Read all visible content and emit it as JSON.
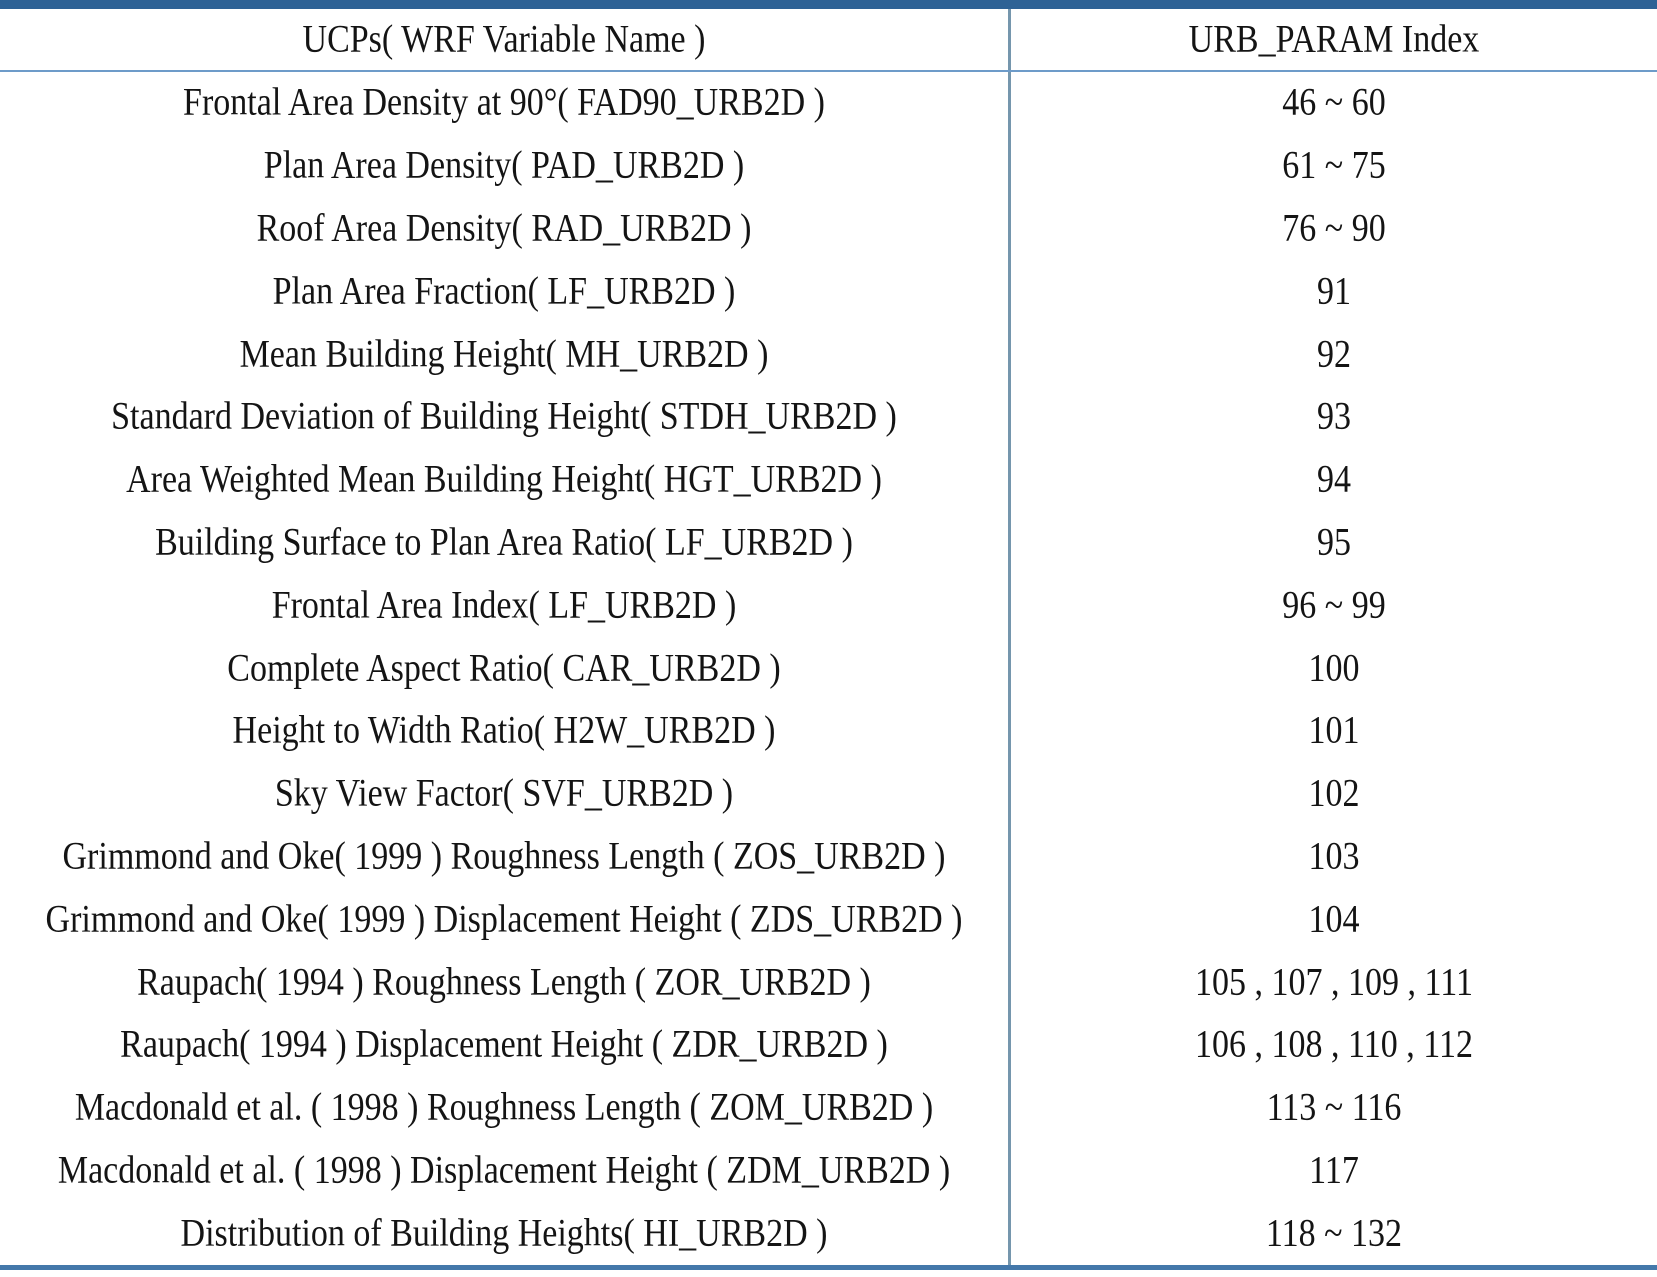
{
  "table": {
    "headers": [
      {
        "label": "UCPs( WRF Variable Name )"
      },
      {
        "label": "URB_PARAM Index"
      }
    ]
  },
  "rows": [
    {
      "ucp": "Frontal Area Density at 90°( FAD90_URB2D )",
      "index": "46 ~ 60"
    },
    {
      "ucp": "Plan Area Density( PAD_URB2D )",
      "index": "61 ~ 75"
    },
    {
      "ucp": "Roof Area Density( RAD_URB2D )",
      "index": "76 ~ 90"
    },
    {
      "ucp": "Plan Area Fraction( LF_URB2D )",
      "index": "91"
    },
    {
      "ucp": "Mean Building Height( MH_URB2D )",
      "index": "92"
    },
    {
      "ucp": "Standard Deviation of Building Height( STDH_URB2D )",
      "index": "93"
    },
    {
      "ucp": "Area Weighted Mean Building Height( HGT_URB2D )",
      "index": "94"
    },
    {
      "ucp": "Building Surface to Plan Area Ratio( LF_URB2D )",
      "index": "95"
    },
    {
      "ucp": "Frontal Area Index( LF_URB2D )",
      "index": "96 ~ 99"
    },
    {
      "ucp": "Complete Aspect Ratio( CAR_URB2D )",
      "index": "100"
    },
    {
      "ucp": "Height to Width Ratio( H2W_URB2D )",
      "index": "101"
    },
    {
      "ucp": "Sky View Factor( SVF_URB2D )",
      "index": "102"
    },
    {
      "ucp": "Grimmond and Oke( 1999 ) Roughness Length ( ZOS_URB2D )",
      "index": "103"
    },
    {
      "ucp": "Grimmond and Oke( 1999 ) Displacement Height ( ZDS_URB2D )",
      "index": "104"
    },
    {
      "ucp": "Raupach( 1994 ) Roughness Length ( ZOR_URB2D )",
      "index": "105 , 107 , 109 , 111"
    },
    {
      "ucp": "Raupach( 1994 ) Displacement Height ( ZDR_URB2D )",
      "index": "106 , 108 , 110 , 112"
    },
    {
      "ucp": "Macdonald et al. ( 1998 ) Roughness Length ( ZOM_URB2D )",
      "index": "113 ~ 116"
    },
    {
      "ucp": "Macdonald et al. ( 1998 ) Displacement Height ( ZDM_URB2D )",
      "index": "117"
    },
    {
      "ucp": "Distribution of Building Heights( HI_URB2D )",
      "index": "118 ~ 132"
    }
  ],
  "colors": {
    "top_border": "#2e6295",
    "bottom_border": "#4478aa",
    "header_rule": "#6d9bc9",
    "column_divider": "#7596ad",
    "text": "#141414",
    "background": "#ffffff"
  }
}
